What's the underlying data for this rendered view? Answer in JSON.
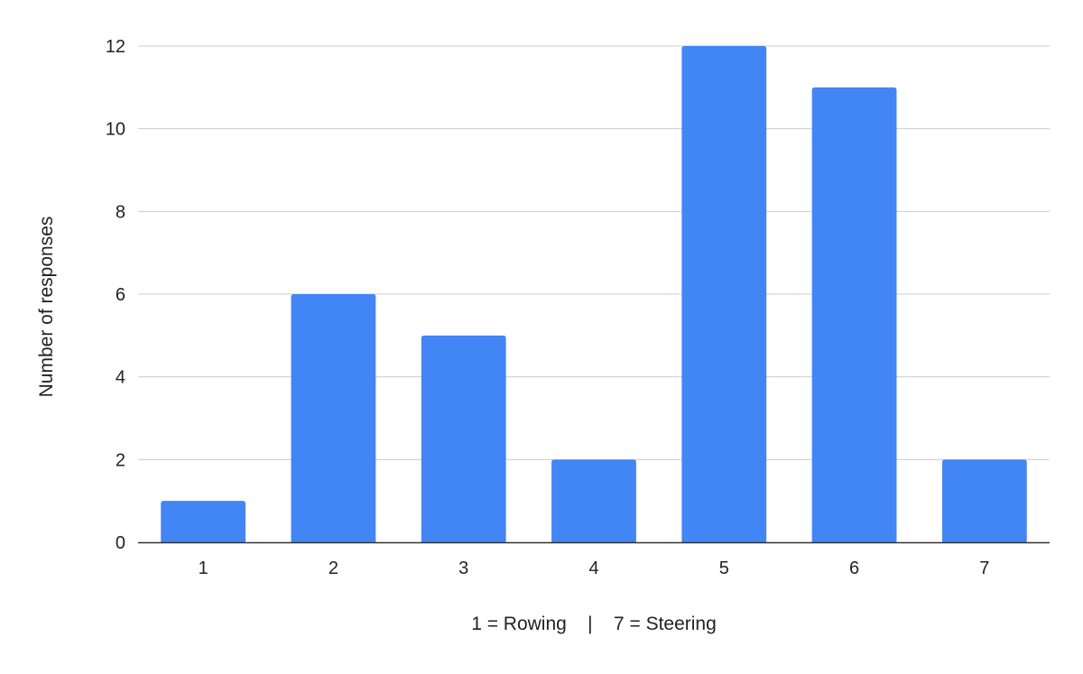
{
  "chart_data": {
    "type": "bar",
    "title": "",
    "xlabel": "1 = Rowing    |    7 = Steering",
    "ylabel": "Number of responses",
    "categories": [
      "1",
      "2",
      "3",
      "4",
      "5",
      "6",
      "7"
    ],
    "values": [
      1,
      6,
      5,
      2,
      12,
      11,
      2
    ],
    "ylim": [
      0,
      12
    ],
    "yticks": [
      0,
      2,
      4,
      6,
      8,
      10,
      12
    ],
    "grid": true,
    "legend": "none",
    "bar_color": "#4285F4",
    "grid_color": "#CCCCCC",
    "axis_color": "#333333"
  }
}
